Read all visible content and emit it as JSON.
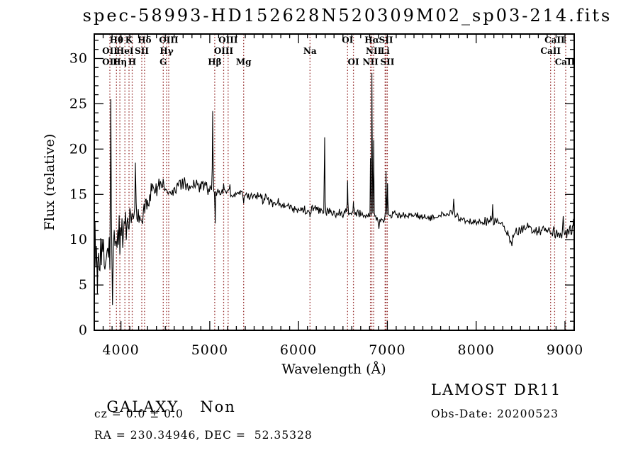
{
  "title": "spec-58993-HD152628N520309M02_sp03-214.fits",
  "chart_data": {
    "type": "line",
    "title": "spec-58993-HD152628N520309M02_sp03-214.fits",
    "xlabel": "Wavelength (Å)",
    "ylabel": "Flux (relative)",
    "xlim": [
      3700,
      9104
    ],
    "ylim": [
      0,
      32.7
    ],
    "x_ticks": [
      4000,
      5000,
      6000,
      7000,
      8000,
      9000
    ],
    "y_ticks": [
      0,
      5,
      10,
      15,
      20,
      25,
      30
    ],
    "x_minor_step": 100,
    "y_minor_step": 1,
    "grid": false,
    "line_color": "#000000",
    "marker_color": "#993333",
    "marker_lines": [
      3876,
      3950,
      3988,
      4045,
      4091,
      4127,
      4235,
      4266,
      4477,
      4514,
      4538,
      5056,
      5157,
      5207,
      5382,
      6129,
      6552,
      6618,
      6810,
      6826,
      6846,
      6975,
      6985,
      7000,
      8838,
      8884,
      9008
    ],
    "marker_labels": [
      {
        "text": "Hθ",
        "row": 1,
        "wavelength": 3950
      },
      {
        "text": "K",
        "row": 1,
        "wavelength": 4091
      },
      {
        "text": "Hδ",
        "row": 1,
        "wavelength": 4266
      },
      {
        "text": "OIII",
        "row": 1,
        "wavelength": 4538
      },
      {
        "text": "OIII",
        "row": 1,
        "wavelength": 5207
      },
      {
        "text": "OI",
        "row": 1,
        "wavelength": 6552
      },
      {
        "text": "Hα",
        "row": 1,
        "wavelength": 6826
      },
      {
        "text": "SII",
        "row": 1,
        "wavelength": 6985
      },
      {
        "text": "CaII",
        "row": 1,
        "wavelength": 8884
      },
      {
        "text": "OII",
        "row": 2,
        "wavelength": 3876
      },
      {
        "text": "HeI",
        "row": 2,
        "wavelength": 4045
      },
      {
        "text": "SII",
        "row": 2,
        "wavelength": 4235
      },
      {
        "text": "Hγ",
        "row": 2,
        "wavelength": 4514
      },
      {
        "text": "OIII",
        "row": 2,
        "wavelength": 5157
      },
      {
        "text": "Na",
        "row": 2,
        "wavelength": 6129
      },
      {
        "text": "NII",
        "row": 2,
        "wavelength": 6846
      },
      {
        "text": "Li",
        "row": 2,
        "wavelength": 6975
      },
      {
        "text": "CaII",
        "row": 2,
        "wavelength": 8838
      },
      {
        "text": "OII",
        "row": 3,
        "wavelength": 3876
      },
      {
        "text": "Hη",
        "row": 3,
        "wavelength": 3988
      },
      {
        "text": "H",
        "row": 3,
        "wavelength": 4127
      },
      {
        "text": "G",
        "row": 3,
        "wavelength": 4477
      },
      {
        "text": "Hβ",
        "row": 3,
        "wavelength": 5056
      },
      {
        "text": "Mg",
        "row": 3,
        "wavelength": 5382
      },
      {
        "text": "OI",
        "row": 3,
        "wavelength": 6618
      },
      {
        "text": "NII",
        "row": 3,
        "wavelength": 6810
      },
      {
        "text": "SII",
        "row": 3,
        "wavelength": 7000
      },
      {
        "text": "CaII",
        "row": 3,
        "wavelength": 9008
      }
    ],
    "spectrum": {
      "continuum": [
        [
          3700,
          9.2
        ],
        [
          3740,
          8.2
        ],
        [
          3780,
          8.6
        ],
        [
          3820,
          8.0
        ],
        [
          3860,
          8.8
        ],
        [
          3900,
          9.0
        ],
        [
          3940,
          9.6
        ],
        [
          3980,
          10.0
        ],
        [
          4020,
          10.6
        ],
        [
          4060,
          11.4
        ],
        [
          4100,
          12.4
        ],
        [
          4140,
          13.2
        ],
        [
          4180,
          13.4
        ],
        [
          4220,
          12.8
        ],
        [
          4260,
          13.0
        ],
        [
          4300,
          14.2
        ],
        [
          4340,
          15.0
        ],
        [
          4380,
          15.5
        ],
        [
          4420,
          15.9
        ],
        [
          4460,
          16.2
        ],
        [
          4500,
          15.9
        ],
        [
          4540,
          15.3
        ],
        [
          4580,
          15.6
        ],
        [
          4620,
          15.9
        ],
        [
          4660,
          16.2
        ],
        [
          4700,
          16.3
        ],
        [
          4740,
          16.1
        ],
        [
          4780,
          15.9
        ],
        [
          4820,
          15.9
        ],
        [
          4860,
          16.0
        ],
        [
          4900,
          16.1
        ],
        [
          4940,
          15.9
        ],
        [
          4980,
          15.7
        ],
        [
          5020,
          15.5
        ],
        [
          5060,
          15.1
        ],
        [
          5100,
          15.4
        ],
        [
          5140,
          15.5
        ],
        [
          5180,
          15.3
        ],
        [
          5220,
          15.4
        ],
        [
          5260,
          15.2
        ],
        [
          5300,
          15.0
        ],
        [
          5340,
          14.9
        ],
        [
          5400,
          14.8
        ],
        [
          5460,
          15.0
        ],
        [
          5520,
          14.9
        ],
        [
          5580,
          14.7
        ],
        [
          5640,
          14.4
        ],
        [
          5700,
          14.2
        ],
        [
          5760,
          14.0
        ],
        [
          5820,
          13.8
        ],
        [
          5880,
          13.7
        ],
        [
          5940,
          13.5
        ],
        [
          6000,
          13.4
        ],
        [
          6060,
          13.3
        ],
        [
          6120,
          13.1
        ],
        [
          6180,
          13.3
        ],
        [
          6240,
          13.2
        ],
        [
          6300,
          13.1
        ],
        [
          6360,
          13.0
        ],
        [
          6420,
          12.9
        ],
        [
          6480,
          13.0
        ],
        [
          6540,
          13.0
        ],
        [
          6600,
          12.9
        ],
        [
          6660,
          12.8
        ],
        [
          6720,
          12.8
        ],
        [
          6780,
          12.7
        ],
        [
          6840,
          12.8
        ],
        [
          6900,
          12.1
        ],
        [
          6960,
          12.2
        ],
        [
          7020,
          12.6
        ],
        [
          7080,
          12.8
        ],
        [
          7140,
          12.7
        ],
        [
          7200,
          12.7
        ],
        [
          7260,
          12.8
        ],
        [
          7320,
          12.7
        ],
        [
          7380,
          12.5
        ],
        [
          7440,
          12.3
        ],
        [
          7500,
          12.3
        ],
        [
          7560,
          12.5
        ],
        [
          7620,
          12.7
        ],
        [
          7680,
          12.9
        ],
        [
          7740,
          13.0
        ],
        [
          7800,
          12.5
        ],
        [
          7860,
          12.2
        ],
        [
          7920,
          12.0
        ],
        [
          7980,
          11.9
        ],
        [
          8040,
          11.9
        ],
        [
          8100,
          12.0
        ],
        [
          8160,
          12.1
        ],
        [
          8220,
          12.1
        ],
        [
          8280,
          11.8
        ],
        [
          8340,
          11.1
        ],
        [
          8390,
          9.9
        ],
        [
          8420,
          10.4
        ],
        [
          8460,
          11.0
        ],
        [
          8520,
          11.2
        ],
        [
          8580,
          11.3
        ],
        [
          8640,
          11.1
        ],
        [
          8700,
          11.0
        ],
        [
          8760,
          11.1
        ],
        [
          8820,
          11.0
        ],
        [
          8880,
          10.8
        ],
        [
          8940,
          10.5
        ],
        [
          9000,
          10.6
        ],
        [
          9050,
          10.9
        ],
        [
          9104,
          10.4
        ]
      ],
      "noise_envelope": [
        [
          3700,
          3.4
        ],
        [
          3780,
          3.2
        ],
        [
          3860,
          3.0
        ],
        [
          3940,
          2.6
        ],
        [
          4020,
          2.2
        ],
        [
          4100,
          1.9
        ],
        [
          4200,
          1.5
        ],
        [
          4300,
          1.25
        ],
        [
          4450,
          1.0
        ],
        [
          4700,
          0.85
        ],
        [
          5000,
          0.8
        ],
        [
          5300,
          0.7
        ],
        [
          5600,
          0.6
        ],
        [
          5900,
          0.55
        ],
        [
          6200,
          0.5
        ],
        [
          6600,
          0.45
        ],
        [
          7000,
          0.42
        ],
        [
          7400,
          0.4
        ],
        [
          7800,
          0.45
        ],
        [
          8200,
          0.5
        ],
        [
          8500,
          0.55
        ],
        [
          8800,
          0.6
        ],
        [
          9000,
          0.75
        ],
        [
          9104,
          0.9
        ]
      ],
      "peaks": [
        [
          3735,
          4.0,
          6
        ],
        [
          3886,
          25.5,
          8
        ],
        [
          3905,
          2.8,
          8
        ],
        [
          4163,
          18.5,
          7
        ],
        [
          5033,
          24.2,
          7
        ],
        [
          5062,
          11.8,
          6
        ],
        [
          5382,
          14.0,
          7
        ],
        [
          6129,
          12.5,
          6
        ],
        [
          6294,
          21.3,
          7
        ],
        [
          6552,
          16.5,
          6
        ],
        [
          6618,
          14.2,
          5
        ],
        [
          6810,
          19.0,
          5
        ],
        [
          6826,
          28.4,
          6
        ],
        [
          6846,
          21.0,
          5
        ],
        [
          6905,
          11.2,
          9
        ],
        [
          6985,
          17.6,
          6
        ],
        [
          7002,
          16.2,
          5
        ],
        [
          7747,
          14.5,
          8
        ],
        [
          8186,
          13.9,
          7
        ],
        [
          8402,
          9.3,
          10
        ],
        [
          8980,
          12.6,
          6
        ],
        [
          9095,
          12.3,
          8
        ]
      ]
    }
  },
  "annotations": {
    "class_label": "GALAXY",
    "subclass": "Non",
    "cz_line": "cz = 0.0 ± 0.0",
    "radec_line": "RA = 230.34946, DEC =  52.35328",
    "survey": "LAMOST DR11",
    "obs_date": "Obs-Date: 20200523"
  }
}
